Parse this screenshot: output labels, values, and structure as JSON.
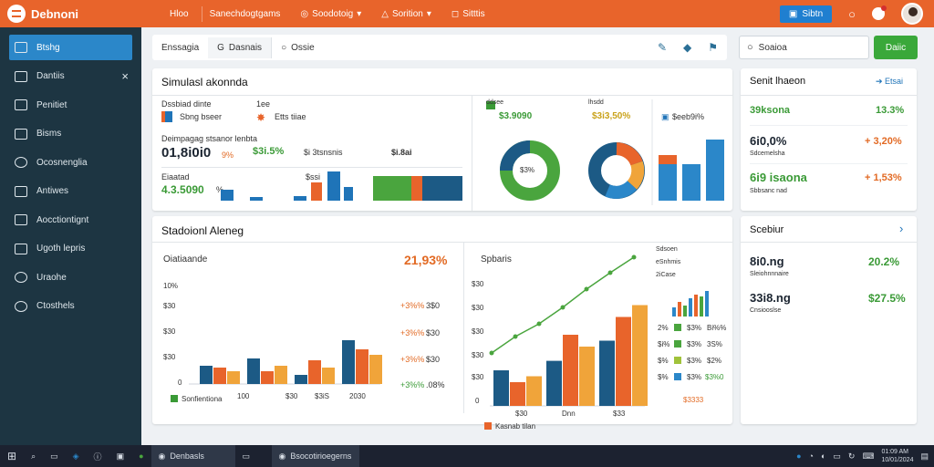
{
  "app": {
    "title": "Debnoni"
  },
  "topnav": [
    "Hloo",
    "Sanechdogtgams",
    "Soodotoig",
    "Sorition",
    "Sitttis"
  ],
  "top_button": "Sibtn",
  "sidebar": {
    "items": [
      {
        "label": "Btshg",
        "icon": "grid-icon",
        "active": true
      },
      {
        "label": "Dantiis",
        "icon": "card-icon",
        "close": "×"
      },
      {
        "label": "Penitiet",
        "icon": "list-icon"
      },
      {
        "label": "Bisms",
        "icon": "book-icon"
      },
      {
        "label": "Ocosnenglia",
        "icon": "globe-icon"
      },
      {
        "label": "Antiwes",
        "icon": "people-icon"
      },
      {
        "label": "Aocctiontignt",
        "icon": "file-icon"
      },
      {
        "label": "Ugoth lepris",
        "icon": "page-icon"
      },
      {
        "label": "Uraohe",
        "icon": "circle-icon"
      },
      {
        "label": "Ctosthels",
        "icon": "settings-icon"
      }
    ]
  },
  "tabs": [
    "Enssagia",
    "Dasnais",
    "Ossie"
  ],
  "search": {
    "placeholder": "Soaioa",
    "button": "Daiic"
  },
  "card1": {
    "title": "Simulasl akonnda",
    "col1_head": "Dssbiad dinte",
    "col1_label": "Sbng bseer",
    "col2_head": "1ee",
    "col2_label": "Etts tiiae",
    "sub_head": "Deimpagag stsanor lenbta",
    "big": "01,8i0i0",
    "big_suffix": "9%",
    "pct": "$3i.5%",
    "mid": "$i 3tsnsnis",
    "right": "$i.8ai",
    "b_label": "Eiaatad",
    "b_value": "4.3.5090",
    "b_value2": "%",
    "chart_tag": "$ssi"
  },
  "card_donuts": {
    "tag1": "ddsee",
    "pct1": "$3.9090",
    "tag2": "lhsdd",
    "pct2": "$3i3,50%",
    "center1": "$3%",
    "bar_label": "$eeb9i%"
  },
  "card_right1": {
    "title": "Senit lhaeon",
    "link": "Etsai",
    "rows": [
      {
        "name": "39ksona",
        "value": "13.3%",
        "sub": ""
      },
      {
        "name": "6i0,0%",
        "value": "+ 3,20%",
        "sub": "Sdcemelsha"
      },
      {
        "name": "6i9 isaona",
        "value": "+ 1,53%",
        "sub": "Sbbsanc nad"
      }
    ]
  },
  "card_main": {
    "title": "Stadoionl Aleneg",
    "left_title": "Oiatiaande",
    "left_value": "21,93%",
    "yticks": [
      "10%",
      "$30",
      "$30",
      "$30",
      "0"
    ],
    "xticks": [
      "100",
      "$30",
      "$3iS",
      "2030"
    ],
    "legend": "Sonfientiona",
    "side_vals": [
      {
        "a": "+3%%",
        "b": "3$0"
      },
      {
        "a": "+3%%",
        "b": "$30"
      },
      {
        "a": "+3%%",
        "b": "$30"
      },
      {
        "a": "+3%%",
        "b": ".08%"
      }
    ],
    "right_title": "Spbaris",
    "right_yticks": [
      "$30",
      "$30",
      "$30",
      "$30",
      "$30",
      "0"
    ],
    "right_xticks": [
      "$30",
      "Dnn",
      "$33"
    ],
    "right_legend": "Kasnab tilan",
    "list_head": "Sdsoen",
    "list_head2": "eSnhmis",
    "list_head3": "2iCase",
    "list_rows": [
      {
        "a": "2%",
        "b": "$3%",
        "c": "Bi%%"
      },
      {
        "a": "$i%",
        "b": "$3%",
        "c": "3S%"
      },
      {
        "a": "$%",
        "b": "$3%",
        "c": "$2%"
      },
      {
        "a": "$%",
        "b": "$3%",
        "c": "$3%0"
      }
    ],
    "list_foot": "$3333"
  },
  "card_right2": {
    "title": "Scebiur",
    "rows": [
      {
        "name": "8i0.ng",
        "value": "20.2%",
        "sub": "Sleiohnnnaire"
      },
      {
        "name": "33i8.ng",
        "value": "$27.5%",
        "sub": "Cnsiooslse"
      }
    ]
  },
  "taskbar": {
    "items": [
      "Denbasls",
      "Bsocotirioegerns"
    ],
    "time": "01:09 AM",
    "date": "10/01/2024"
  },
  "colors": {
    "accent": "#e8642b",
    "sidebar": "#1d3542",
    "active": "#2b87c9",
    "green": "#3a9a36"
  },
  "chart_data": [
    {
      "type": "bar",
      "categories": [
        "100",
        "$30",
        "$3iS",
        "2030"
      ],
      "series": [
        {
          "values": [
            20,
            28,
            10,
            48
          ]
        },
        {
          "values": [
            18,
            14,
            26,
            38
          ]
        },
        {
          "values": [
            14,
            20,
            18,
            32
          ]
        }
      ]
    },
    {
      "type": "bar",
      "categories": [
        "$30",
        "Dnn",
        "$33"
      ],
      "series": [
        {
          "values": [
            30,
            38,
            55
          ]
        },
        {
          "values": [
            20,
            60,
            75
          ]
        },
        {
          "values": [
            25,
            50,
            85
          ]
        }
      ]
    },
    {
      "type": "pie",
      "series": [
        {
          "values": [
            70,
            30
          ]
        },
        {
          "values": [
            35,
            25,
            40
          ]
        }
      ]
    }
  ]
}
